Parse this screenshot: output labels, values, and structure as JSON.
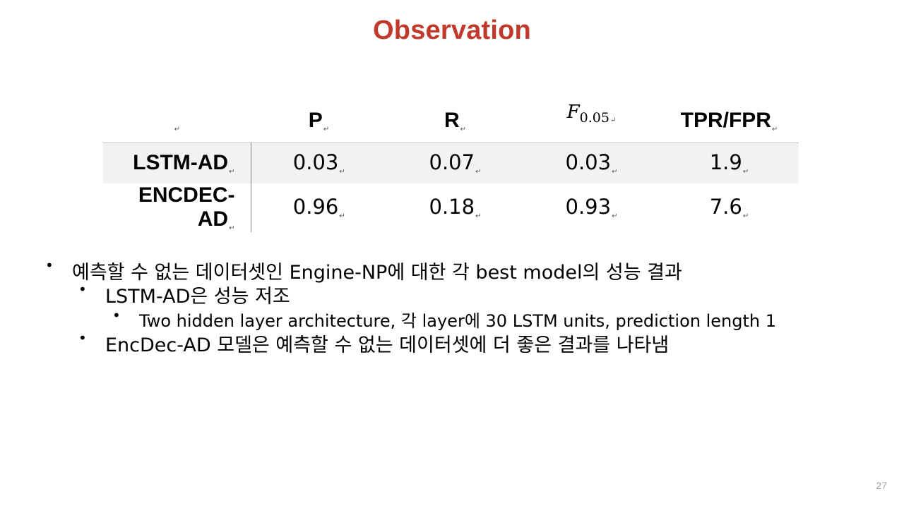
{
  "slide": {
    "title": "Observation",
    "page_number": "27",
    "accent_color": "#c0392b"
  },
  "table": {
    "headers": {
      "p": "P",
      "r": "R",
      "f_main": "F",
      "f_sub": "0.05",
      "ratio": "TPR/FPR"
    },
    "rows": [
      {
        "model": "LSTM-AD",
        "values": [
          "0.03",
          "0.07",
          "0.03",
          "1.9"
        ]
      },
      {
        "model": "ENCDEC-AD",
        "values": [
          "0.96",
          "0.18",
          "0.93",
          "7.6"
        ]
      }
    ],
    "mark": "↵"
  },
  "bullets": [
    {
      "level": 1,
      "text": "예측할 수 없는 데이터셋인 Engine-NP에 대한 각 best model의 성능 결과"
    },
    {
      "level": 2,
      "text": "LSTM-AD은 성능 저조"
    },
    {
      "level": 3,
      "text": "Two hidden layer architecture, 각 layer에 30 LSTM units, prediction length 1"
    },
    {
      "level": 2,
      "text": "EncDec-AD 모델은 예측할 수 없는 데이터셋에 더 좋은 결과를 나타냄"
    }
  ],
  "bullet_glyph": "•"
}
